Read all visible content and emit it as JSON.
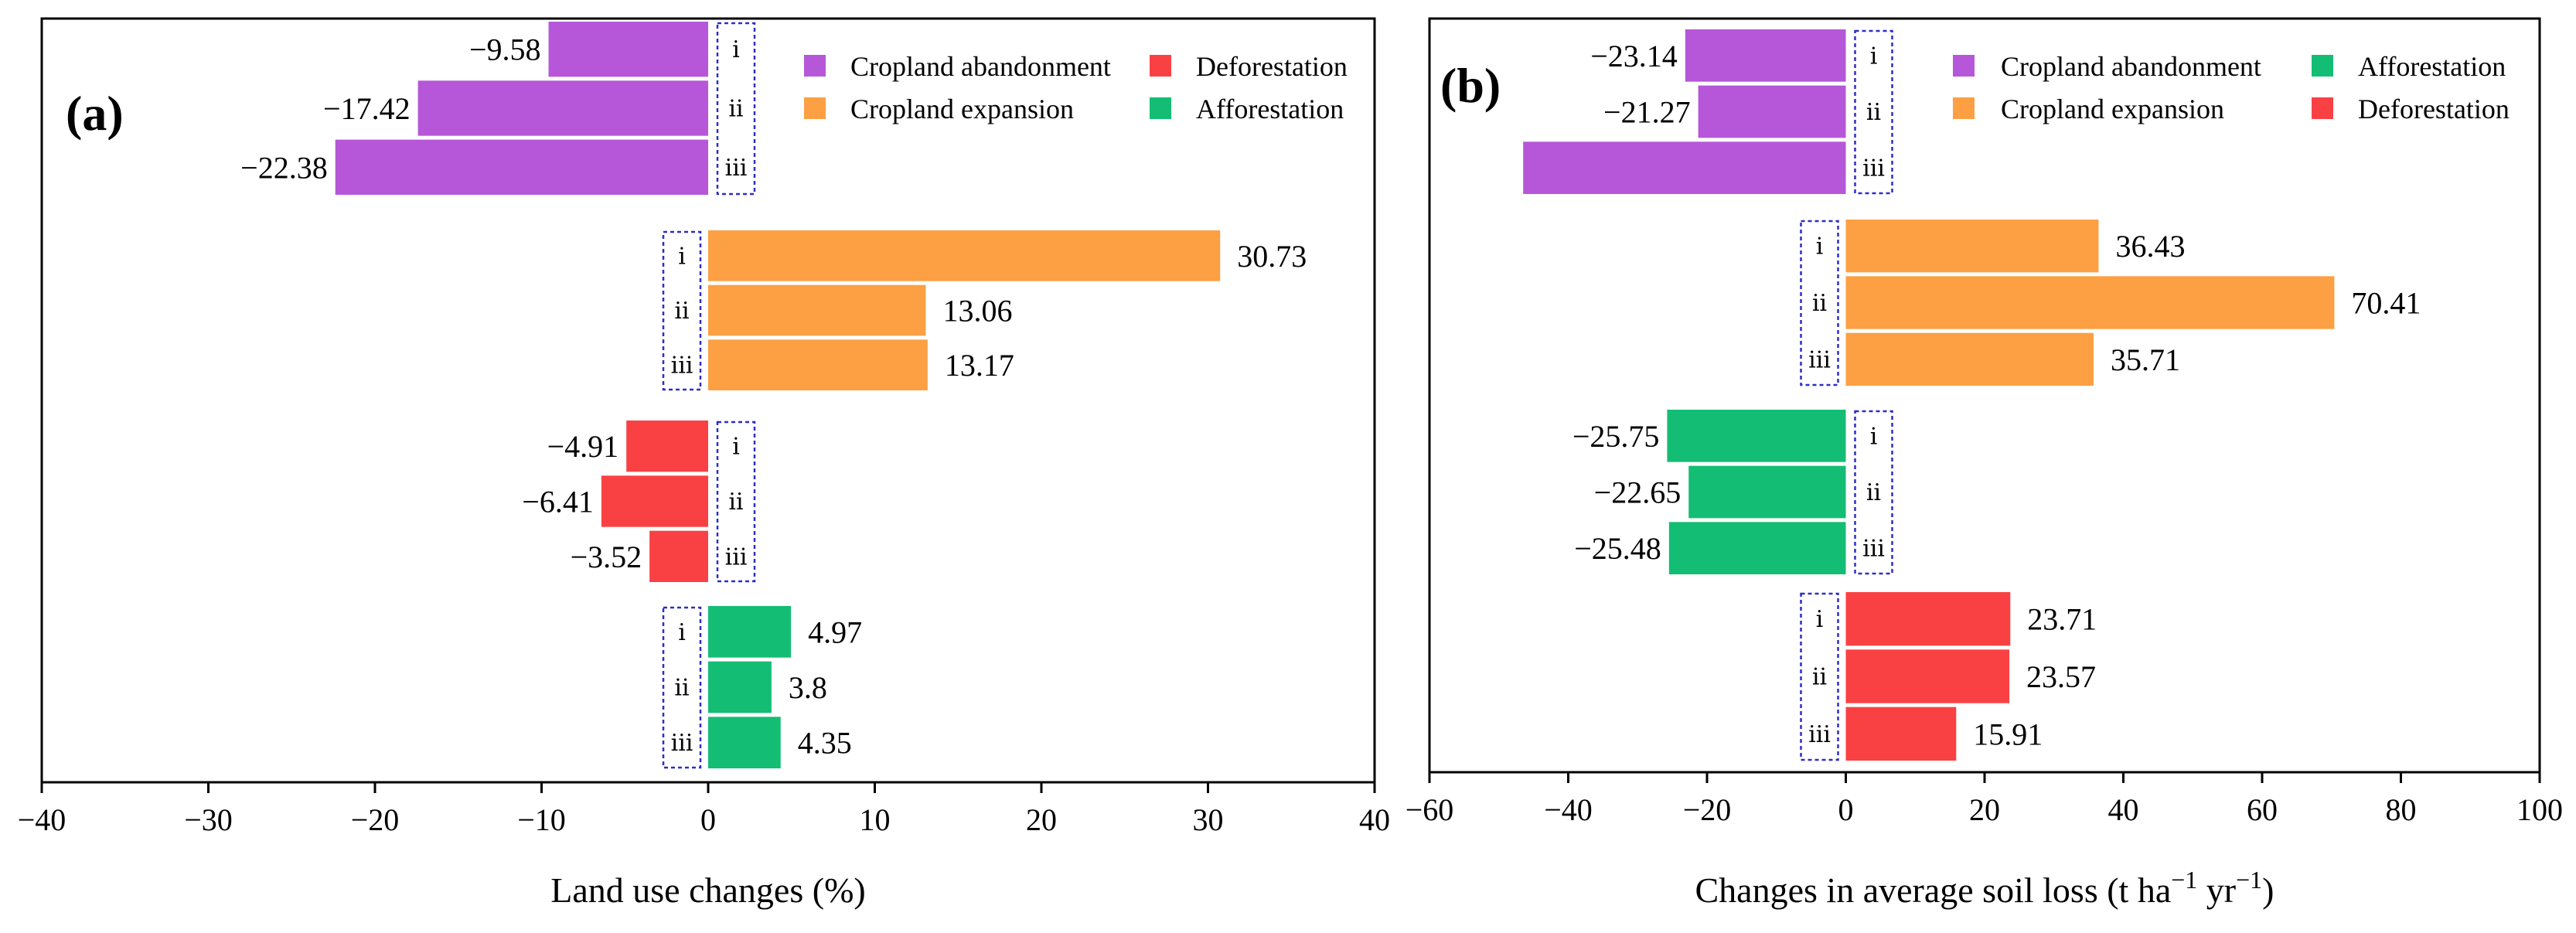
{
  "colors": {
    "cropland_abandonment": "#B657D9",
    "cropland_expansion": "#FCA043",
    "deforestation": "#F94144",
    "afforestation": "#14BD74",
    "bracket": "#2E2EC8"
  },
  "chart_data": [
    {
      "type": "bar",
      "orientation": "horizontal",
      "panel_label": "(a)",
      "xlabel": "Land use changes (%)",
      "xlim": [
        -40,
        40
      ],
      "xticks": [
        -40,
        -30,
        -20,
        -10,
        0,
        10,
        20,
        30,
        40
      ],
      "xtick_labels": [
        "−40",
        "−30",
        "−20",
        "−10",
        "0",
        "10",
        "20",
        "30",
        "40"
      ],
      "legend": [
        {
          "label": "Cropland abandonment",
          "color": "#B657D9"
        },
        {
          "label": "Deforestation",
          "color": "#F94144"
        },
        {
          "label": "Cropland expansion",
          "color": "#FCA043"
        },
        {
          "label": "Afforestation",
          "color": "#14BD74"
        }
      ],
      "groups": [
        {
          "name": "Cropland abandonment",
          "color": "#B657D9",
          "roman": [
            "ⅰ",
            "ⅱ",
            "ⅲ"
          ],
          "values": [
            -9.58,
            -17.42,
            -22.38
          ],
          "labels": [
            "−9.58",
            "−17.42",
            "−22.38"
          ]
        },
        {
          "name": "Cropland expansion",
          "color": "#FCA043",
          "roman": [
            "ⅰ",
            "ⅱ",
            "ⅲ"
          ],
          "values": [
            30.73,
            13.06,
            13.17
          ],
          "labels": [
            "30.73",
            "13.06",
            "13.17"
          ]
        },
        {
          "name": "Deforestation",
          "color": "#F94144",
          "roman": [
            "ⅰ",
            "ⅱ",
            "ⅲ"
          ],
          "values": [
            -4.91,
            -6.41,
            -3.52
          ],
          "labels": [
            "−4.91",
            "−6.41",
            "−3.52"
          ]
        },
        {
          "name": "Afforestation",
          "color": "#14BD74",
          "roman": [
            "ⅰ",
            "ⅱ",
            "ⅲ"
          ],
          "values": [
            4.97,
            3.8,
            4.35
          ],
          "labels": [
            "4.97",
            "3.8",
            "4.35"
          ]
        }
      ]
    },
    {
      "type": "bar",
      "orientation": "horizontal",
      "panel_label": "(b)",
      "xlabel": "Changes in average soil loss (t ha",
      "xlabel_sup1": "−1",
      "xlabel_mid": " yr",
      "xlabel_sup2": "−1",
      "xlabel_end": ")",
      "xlim": [
        -60,
        100
      ],
      "xticks": [
        -60,
        -40,
        -20,
        0,
        20,
        40,
        60,
        80,
        100
      ],
      "xtick_labels": [
        "−60",
        "−40",
        "−20",
        "0",
        "20",
        "40",
        "60",
        "80",
        "100"
      ],
      "legend": [
        {
          "label": "Cropland abandonment",
          "color": "#B657D9"
        },
        {
          "label": "Afforestation",
          "color": "#14BD74"
        },
        {
          "label": "Cropland expansion",
          "color": "#FCA043"
        },
        {
          "label": "Deforestation",
          "color": "#F94144"
        }
      ],
      "groups": [
        {
          "name": "Cropland abandonment",
          "color": "#B657D9",
          "roman": [
            "ⅰ",
            "ⅱ",
            "ⅲ"
          ],
          "values": [
            -23.14,
            -21.27,
            -46.5
          ],
          "labels": [
            "−23.14",
            "−21.27",
            ""
          ]
        },
        {
          "name": "Cropland expansion",
          "color": "#FCA043",
          "roman": [
            "ⅰ",
            "ⅱ",
            "ⅲ"
          ],
          "values": [
            36.43,
            70.41,
            35.71
          ],
          "labels": [
            "36.43",
            "70.41",
            "35.71"
          ]
        },
        {
          "name": "Afforestation",
          "color": "#14BD74",
          "roman": [
            "ⅰ",
            "ⅱ",
            "ⅲ"
          ],
          "values": [
            -25.75,
            -22.65,
            -25.48
          ],
          "labels": [
            "−25.75",
            "−22.65",
            "−25.48"
          ]
        },
        {
          "name": "Deforestation",
          "color": "#F94144",
          "roman": [
            "ⅰ",
            "ⅱ",
            "ⅲ"
          ],
          "values": [
            23.71,
            23.57,
            15.91
          ],
          "labels": [
            "23.71",
            "23.57",
            "15.91"
          ]
        }
      ]
    }
  ]
}
